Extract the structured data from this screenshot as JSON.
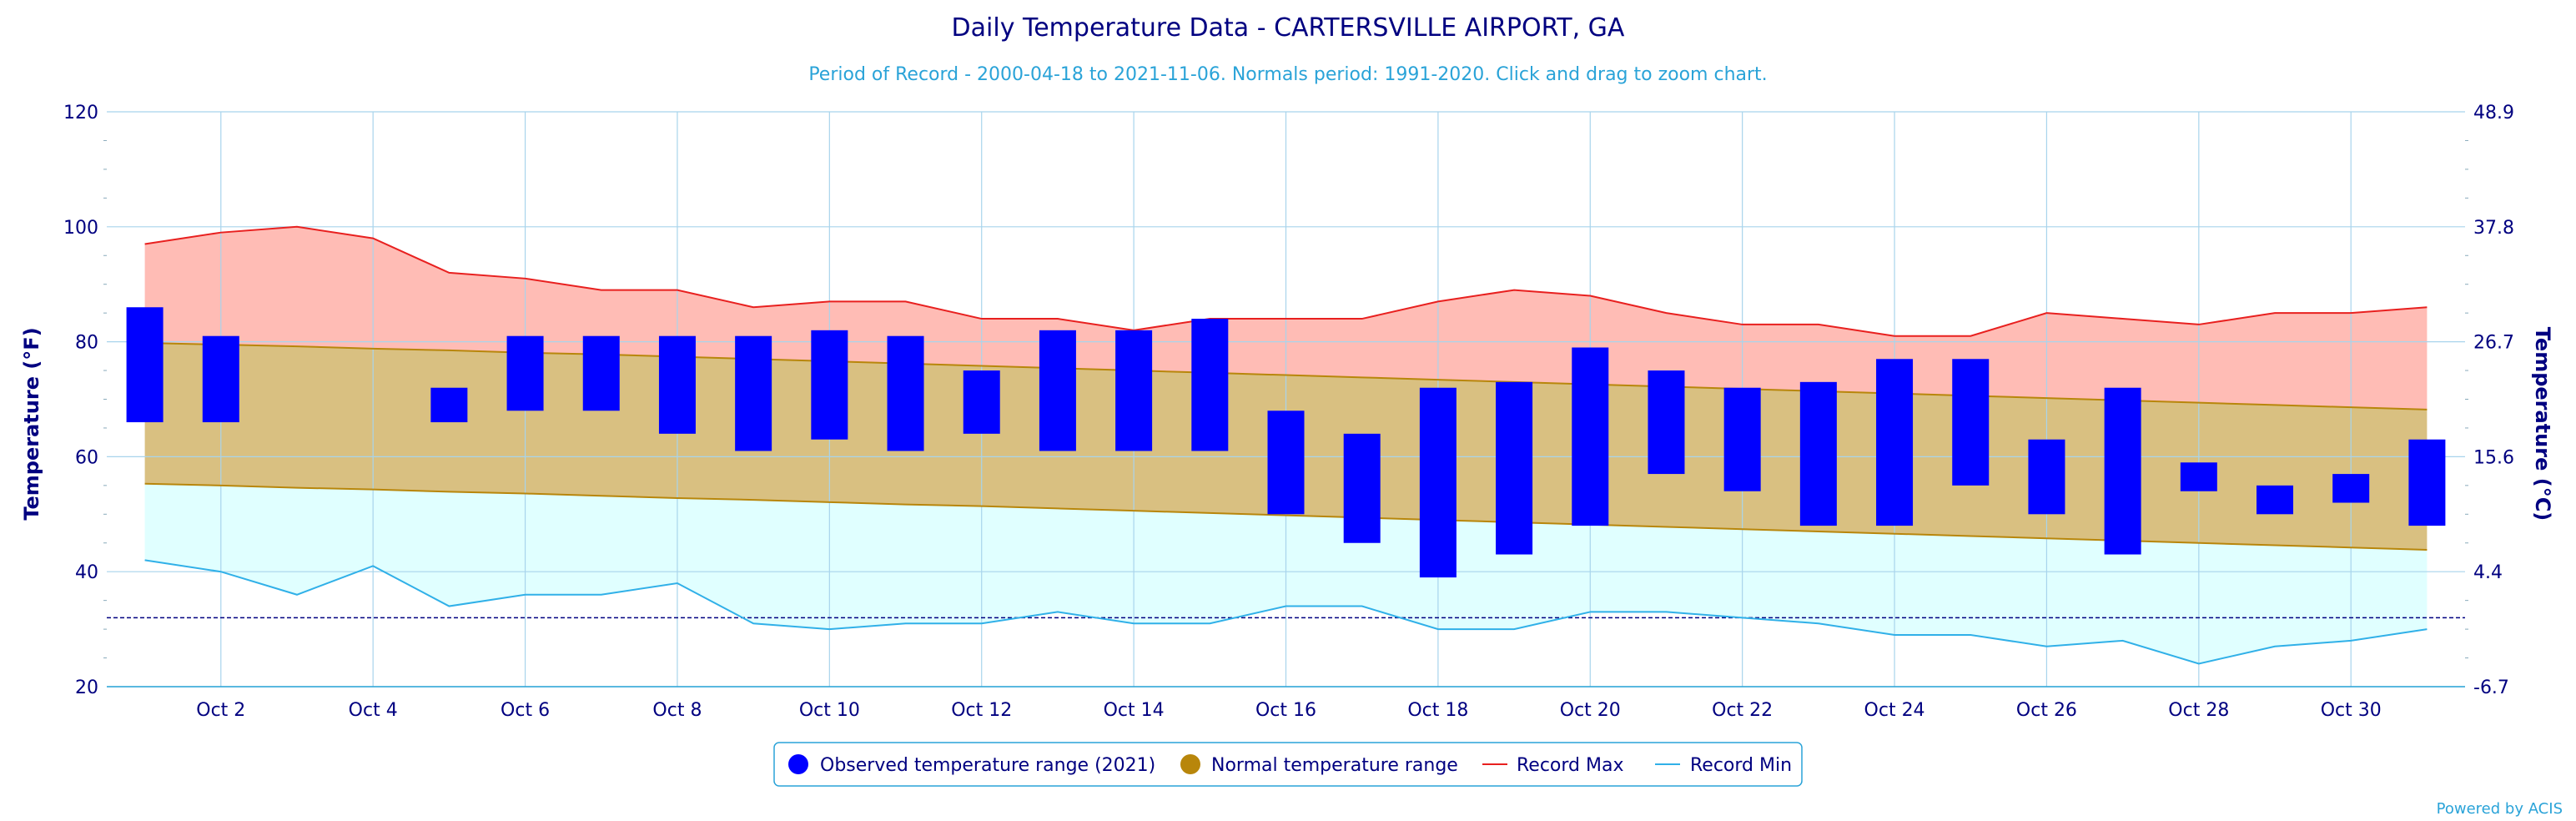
{
  "chart_data": {
    "type": "bar",
    "title": "Daily Temperature Data - CARTERSVILLE AIRPORT, GA",
    "subtitle": "Period of Record - 2000-04-18 to 2021-11-06. Normals period: 1991-2020. Click and drag to zoom chart.",
    "ylabel": "Temperature (°F)",
    "ylabel_right": "Temperature (°C)",
    "ylim": [
      20,
      120
    ],
    "y_ticks": [
      20,
      40,
      60,
      80,
      100,
      120
    ],
    "y_ticks_right": [
      "-6.7",
      "4.4",
      "15.6",
      "26.7",
      "37.8",
      "48.9"
    ],
    "x_days": [
      1,
      2,
      3,
      4,
      5,
      6,
      7,
      8,
      9,
      10,
      11,
      12,
      13,
      14,
      15,
      16,
      17,
      18,
      19,
      20,
      21,
      22,
      23,
      24,
      25,
      26,
      27,
      28,
      29,
      30,
      31
    ],
    "x_tick_labels": [
      "Oct 2",
      "Oct 4",
      "Oct 6",
      "Oct 8",
      "Oct 10",
      "Oct 12",
      "Oct 14",
      "Oct 16",
      "Oct 18",
      "Oct 20",
      "Oct 22",
      "Oct 24",
      "Oct 26",
      "Oct 28",
      "Oct 30"
    ],
    "freezing_line": 32,
    "grid": true,
    "legend_position": "bottom-center",
    "series": [
      {
        "name": "Observed temperature range (2021)",
        "color": "#0000ff",
        "ranges": [
          [
            66,
            86
          ],
          [
            66,
            81
          ],
          null,
          null,
          [
            66,
            72
          ],
          [
            68,
            81
          ],
          [
            68,
            81
          ],
          [
            64,
            81
          ],
          [
            61,
            81
          ],
          [
            63,
            82
          ],
          [
            61,
            81
          ],
          [
            64,
            75
          ],
          [
            61,
            82
          ],
          [
            61,
            82
          ],
          [
            61,
            84
          ],
          [
            50,
            68
          ],
          [
            45,
            64
          ],
          [
            39,
            72
          ],
          [
            43,
            73
          ],
          [
            48,
            79
          ],
          [
            57,
            75
          ],
          [
            54,
            72
          ],
          [
            48,
            73
          ],
          [
            48,
            77
          ],
          [
            55,
            77
          ],
          [
            50,
            63
          ],
          [
            43,
            72
          ],
          [
            54,
            59
          ],
          [
            50,
            55
          ],
          [
            52,
            57
          ],
          [
            48,
            63
          ]
        ]
      },
      {
        "name": "Normal temperature range",
        "color": "#b8860b",
        "fill": "#d9c081",
        "low": [
          55.3,
          55.0,
          54.6,
          54.3,
          53.9,
          53.6,
          53.2,
          52.8,
          52.5,
          52.1,
          51.7,
          51.4,
          51.0,
          50.6,
          50.2,
          49.8,
          49.4,
          49.0,
          48.6,
          48.2,
          47.8,
          47.4,
          47.0,
          46.6,
          46.2,
          45.8,
          45.4,
          45.0,
          44.6,
          44.2,
          43.8
        ],
        "high": [
          79.8,
          79.5,
          79.2,
          78.8,
          78.5,
          78.1,
          77.8,
          77.4,
          77.0,
          76.6,
          76.2,
          75.8,
          75.4,
          75.0,
          74.6,
          74.2,
          73.8,
          73.4,
          73.0,
          72.6,
          72.2,
          71.8,
          71.4,
          71.0,
          70.6,
          70.2,
          69.8,
          69.4,
          69.0,
          68.6,
          68.2
        ]
      },
      {
        "name": "Record Max",
        "color": "#e8201f",
        "fill": "#ffbcb5",
        "values": [
          97,
          99,
          100,
          98,
          92,
          91,
          89,
          89,
          86,
          87,
          87,
          84,
          84,
          82,
          84,
          84,
          84,
          87,
          89,
          88,
          85,
          83,
          83,
          81,
          81,
          85,
          84,
          83,
          85,
          85,
          86
        ]
      },
      {
        "name": "Record Min",
        "color": "#30b0e8",
        "fill": "#e0ffff",
        "values": [
          42,
          40,
          36,
          41,
          34,
          36,
          36,
          38,
          31,
          30,
          31,
          31,
          33,
          31,
          31,
          34,
          34,
          30,
          30,
          33,
          33,
          32,
          31,
          29,
          29,
          27,
          28,
          24,
          27,
          28,
          30
        ]
      }
    ]
  },
  "credit": "Powered by ACIS"
}
